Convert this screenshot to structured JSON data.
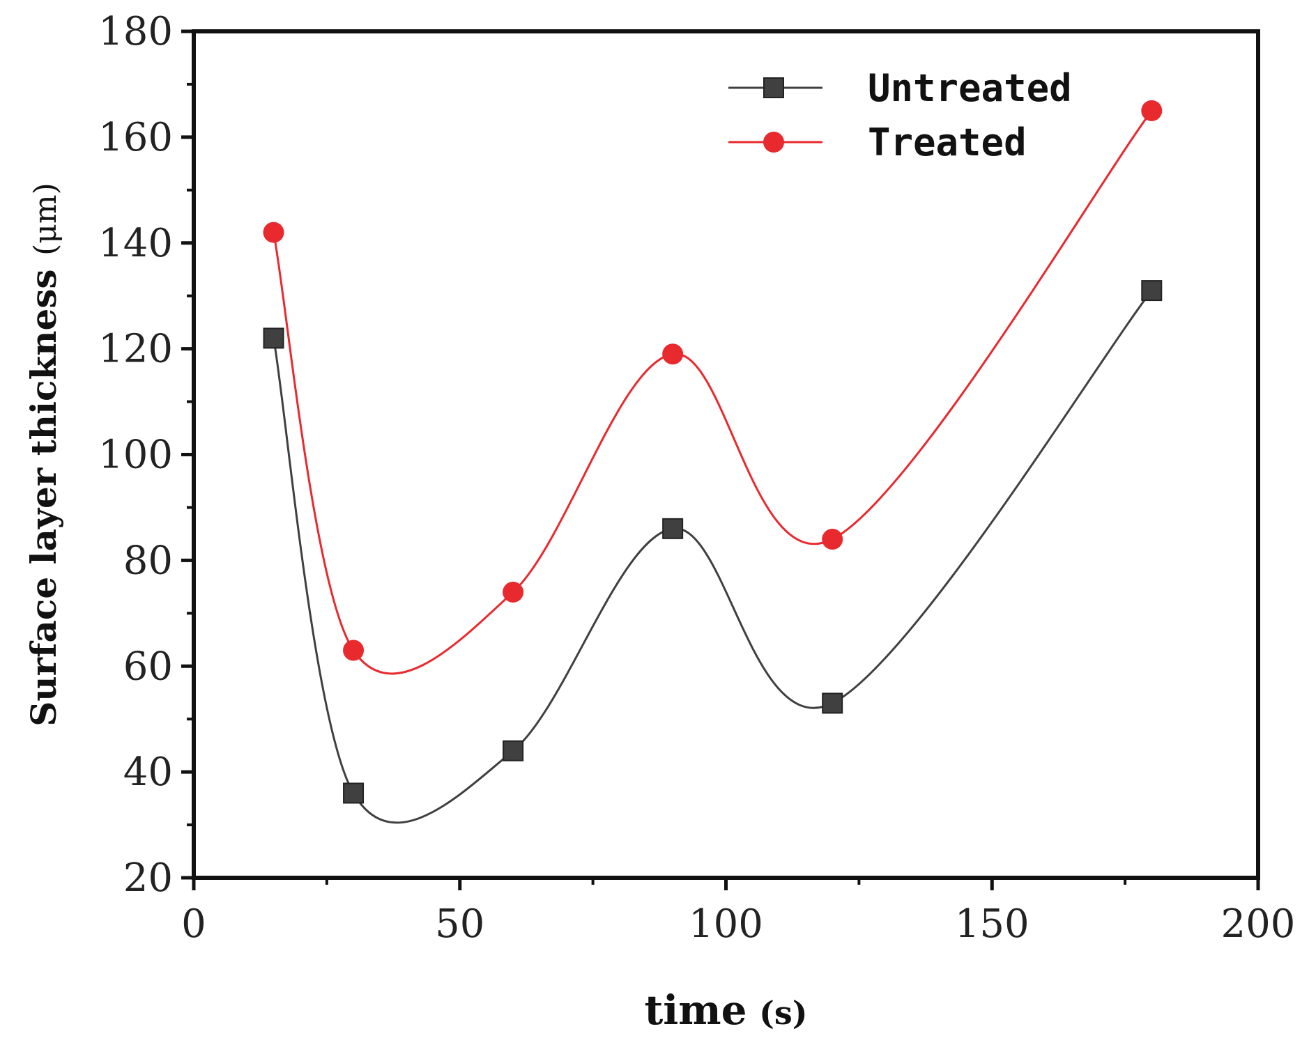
{
  "chart_data": {
    "type": "line",
    "title": "",
    "xlabel_main": "time",
    "xlabel_unit": "(s)",
    "ylabel_main": "Surface layer thickness",
    "ylabel_unit": "(μm)",
    "xlim": [
      0,
      200
    ],
    "ylim": [
      20,
      180
    ],
    "xticks": [
      0,
      50,
      100,
      150,
      200
    ],
    "yticks": [
      20,
      40,
      60,
      80,
      100,
      120,
      140,
      160,
      180
    ],
    "x": [
      15,
      30,
      60,
      90,
      120,
      180
    ],
    "series": [
      {
        "name": "Untreated",
        "color": "#404040",
        "marker": "square",
        "values": [
          122,
          36,
          44,
          86,
          53,
          131
        ]
      },
      {
        "name": "Treated",
        "color": "#e8292e",
        "marker": "circle",
        "values": [
          142,
          63,
          74,
          119,
          84,
          165
        ]
      }
    ],
    "legend_position": "top-right",
    "grid": false
  }
}
